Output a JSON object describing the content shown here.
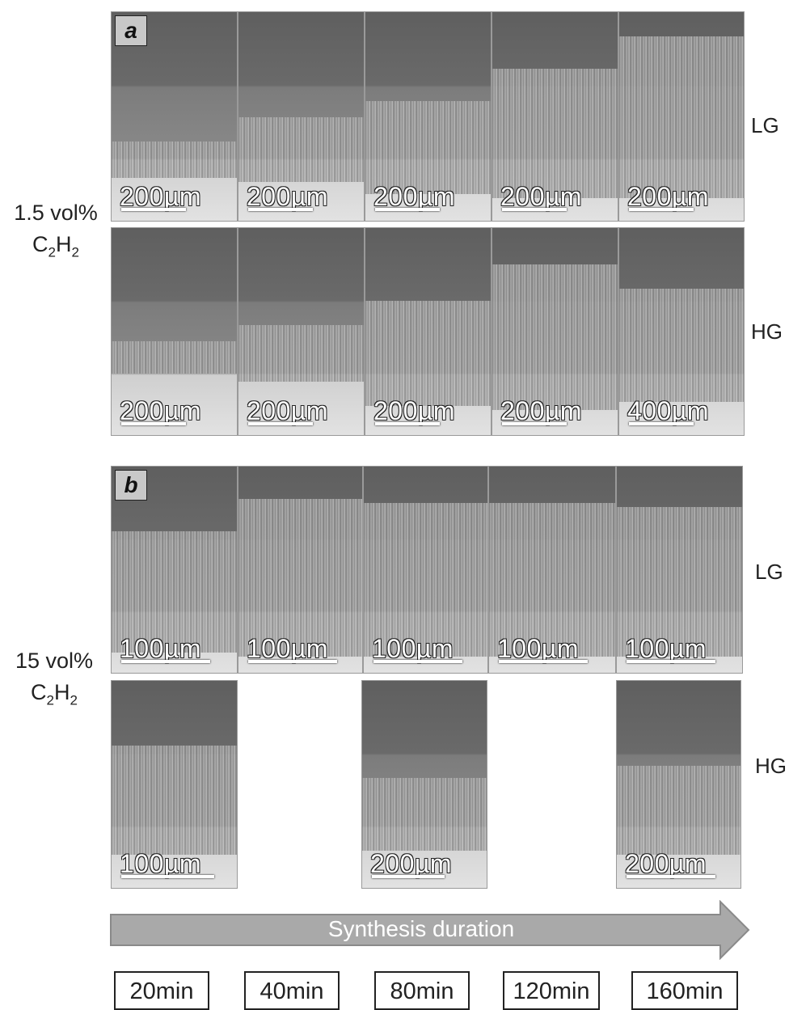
{
  "panel_a": {
    "letter": "a",
    "concentration": "1.5 vol%",
    "gas": {
      "c": "C",
      "s1": "2",
      "h": "H",
      "s2": "2"
    },
    "row_lg": {
      "label": "LG",
      "scales": [
        "200µm",
        "200µm",
        "200µm",
        "200µm",
        "200µm"
      ]
    },
    "row_hg": {
      "label": "HG",
      "scales": [
        "200µm",
        "200µm",
        "200µm",
        "200µm",
        "400µm"
      ]
    }
  },
  "panel_b": {
    "letter": "b",
    "concentration": "15 vol%",
    "gas": {
      "c": "C",
      "s1": "2",
      "h": "H",
      "s2": "2"
    },
    "row_lg": {
      "label": "LG",
      "scales": [
        "100µm",
        "100µm",
        "100µm",
        "100µm",
        "100µm"
      ]
    },
    "row_hg": {
      "label": "HG",
      "scales": [
        "100µm",
        "200µm",
        "200µm"
      ]
    }
  },
  "arrow_label": "Synthesis duration",
  "timepoints": [
    "20min",
    "40min",
    "80min",
    "120min",
    "160min"
  ],
  "colors": {
    "arrow_fill": "#a9a9a9",
    "arrow_stroke": "#8a8a8a"
  }
}
